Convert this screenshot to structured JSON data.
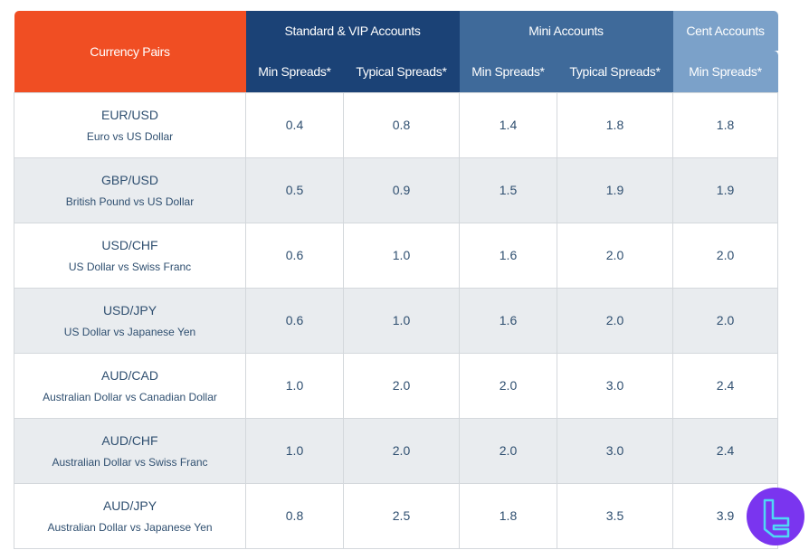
{
  "header": {
    "pairs": "Currency Pairs",
    "groups": [
      "Standard & VIP Accounts",
      "Mini Accounts",
      "Cent Accounts"
    ],
    "sub": [
      "Min Spreads*",
      "Typical Spreads*",
      "Min Spreads*",
      "Typical Spreads*",
      "Min Spreads*"
    ]
  },
  "rows": [
    {
      "code": "EUR/USD",
      "name": "Euro vs US Dollar",
      "v": [
        "0.4",
        "0.8",
        "1.4",
        "1.8",
        "1.8"
      ]
    },
    {
      "code": "GBP/USD",
      "name": "British Pound vs US Dollar",
      "v": [
        "0.5",
        "0.9",
        "1.5",
        "1.9",
        "1.9"
      ]
    },
    {
      "code": "USD/CHF",
      "name": "US Dollar vs Swiss Franc",
      "v": [
        "0.6",
        "1.0",
        "1.6",
        "2.0",
        "2.0"
      ]
    },
    {
      "code": "USD/JPY",
      "name": "US Dollar vs Japanese Yen",
      "v": [
        "0.6",
        "1.0",
        "1.6",
        "2.0",
        "2.0"
      ]
    },
    {
      "code": "AUD/CAD",
      "name": "Australian Dollar vs Canadian Dollar",
      "v": [
        "1.0",
        "2.0",
        "2.0",
        "3.0",
        "2.4"
      ]
    },
    {
      "code": "AUD/CHF",
      "name": "Australian Dollar vs Swiss Franc",
      "v": [
        "1.0",
        "2.0",
        "2.0",
        "3.0",
        "2.4"
      ]
    },
    {
      "code": "AUD/JPY",
      "name": "Australian Dollar vs Japanese Yen",
      "v": [
        "0.8",
        "2.5",
        "1.8",
        "3.5",
        "3.9"
      ]
    }
  ],
  "colors": {
    "pairs": "#f04e23",
    "standard": "#1b4276",
    "mini": "#3f6a9a",
    "cent": "#7ba1c9",
    "logo": "#7a35ef"
  },
  "logo_icon": "tradingfinder-logo-icon"
}
